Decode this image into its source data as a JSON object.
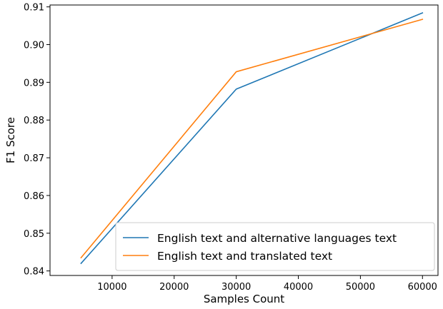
{
  "chart_data": {
    "type": "line",
    "title": "",
    "xlabel": "Samples Count",
    "ylabel": "F1 Score",
    "xlim": [
      0,
      62500
    ],
    "ylim": [
      0.8388,
      0.9105
    ],
    "x_ticks": [
      10000,
      20000,
      30000,
      40000,
      50000,
      60000
    ],
    "x_tick_labels": [
      "10000",
      "20000",
      "30000",
      "40000",
      "50000",
      "60000"
    ],
    "y_ticks": [
      0.84,
      0.85,
      0.86,
      0.87,
      0.88,
      0.89,
      0.9,
      0.91
    ],
    "y_tick_labels": [
      "0.84",
      "0.85",
      "0.86",
      "0.87",
      "0.88",
      "0.89",
      "0.90",
      "0.91"
    ],
    "grid": false,
    "legend_position": "lower-right",
    "series": [
      {
        "name": "English text and alternative languages text",
        "color": "#1f77b4",
        "x": [
          5000,
          30000,
          60000
        ],
        "y": [
          0.842,
          0.8882,
          0.9084
        ]
      },
      {
        "name": "English text and translated text",
        "color": "#ff7f0e",
        "x": [
          5000,
          30000,
          60000
        ],
        "y": [
          0.8435,
          0.8928,
          0.9067
        ]
      }
    ]
  }
}
